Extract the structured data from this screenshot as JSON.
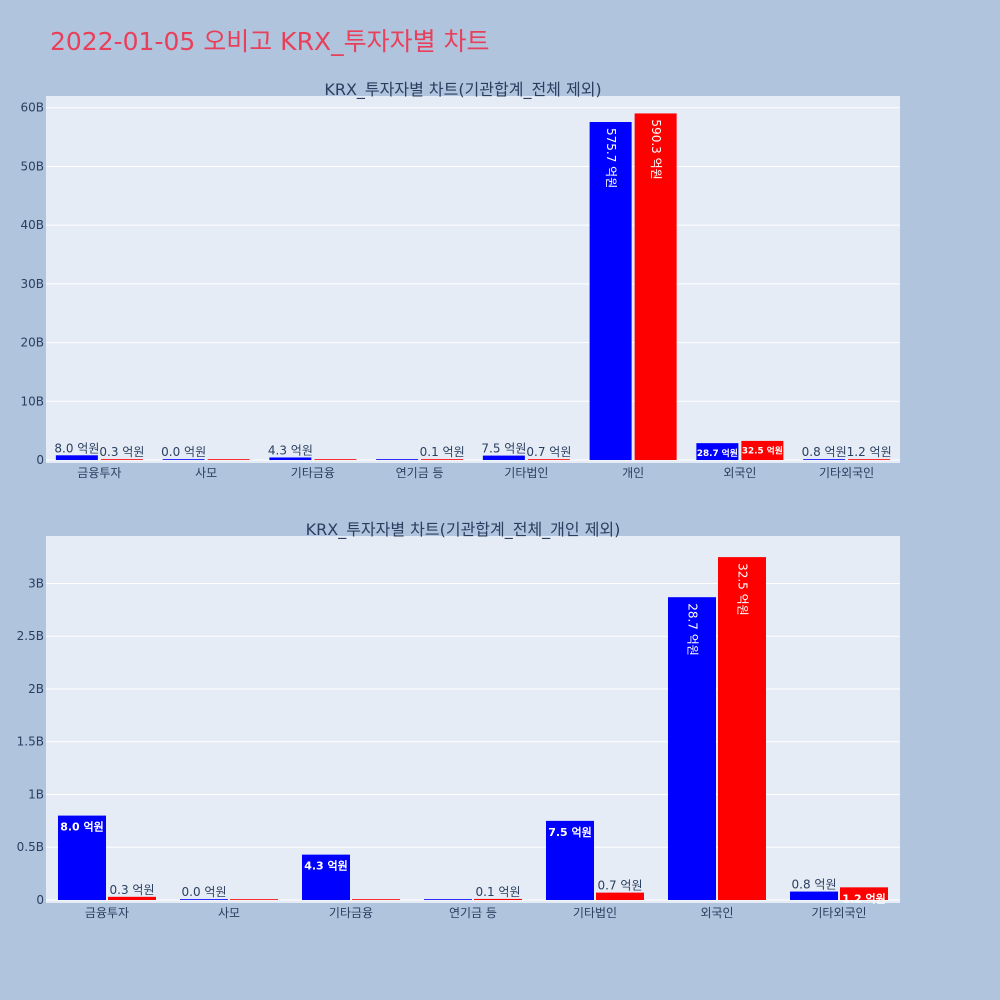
{
  "page": {
    "title": "2022-01-05 오비고 KRX_투자자별 차트"
  },
  "legend": {
    "buy_color": "#0000ff",
    "sell_color": "#ff0000"
  },
  "chart_data": [
    {
      "type": "bar",
      "title": "KRX_투자자별 차트(기관합계_전체 제외)",
      "categories": [
        "금융투자",
        "사모",
        "기타금융",
        "연기금 등",
        "기타법인",
        "개인",
        "외국인",
        "기타외국인"
      ],
      "series": [
        {
          "color": "#0000ff",
          "values": [
            0.8,
            0.0,
            0.43,
            0.0,
            0.75,
            57.57,
            2.87,
            0.08
          ],
          "labels": [
            "8.0 억원",
            "0.0 억원",
            "4.3 억원",
            "",
            "7.5 억원",
            "575.7 억원",
            "28.7 억원",
            "0.8 억원"
          ]
        },
        {
          "color": "#ff0000",
          "values": [
            0.03,
            0.0,
            0.0,
            0.01,
            0.07,
            59.03,
            3.25,
            0.12
          ],
          "labels": [
            "0.3 억원",
            "",
            "",
            "0.1 억원",
            "0.7 억원",
            "590.3 억원",
            "32.5 억원",
            "1.2 억원"
          ]
        }
      ],
      "ylim": [
        0,
        62
      ],
      "yticks": [
        0,
        10,
        20,
        30,
        40,
        50,
        60
      ],
      "ytick_labels": [
        "0",
        "10B",
        "20B",
        "30B",
        "40B",
        "50B",
        "60B"
      ],
      "grid": true
    },
    {
      "type": "bar",
      "title": "KRX_투자자별 차트(기관합계_전체_개인 제외)",
      "categories": [
        "금융투자",
        "사모",
        "기타금융",
        "연기금 등",
        "기타법인",
        "외국인",
        "기타외국인"
      ],
      "series": [
        {
          "color": "#0000ff",
          "values": [
            0.8,
            0.0,
            0.43,
            0.0,
            0.75,
            2.87,
            0.08
          ],
          "labels": [
            "8.0 억원",
            "0.0 억원",
            "4.3 억원",
            "",
            "7.5 억원",
            "28.7 억원",
            "0.8 억원"
          ]
        },
        {
          "color": "#ff0000",
          "values": [
            0.03,
            0.0,
            0.0,
            0.01,
            0.07,
            3.25,
            0.12
          ],
          "labels": [
            "0.3 억원",
            "",
            "",
            "0.1 억원",
            "0.7 억원",
            "32.5 억원",
            "1.2 억원"
          ]
        }
      ],
      "ylim": [
        0,
        3.45
      ],
      "yticks": [
        0,
        0.5,
        1,
        1.5,
        2,
        2.5,
        3
      ],
      "ytick_labels": [
        "0",
        "0.5B",
        "1B",
        "1.5B",
        "2B",
        "2.5B",
        "3B"
      ],
      "grid": true
    }
  ]
}
